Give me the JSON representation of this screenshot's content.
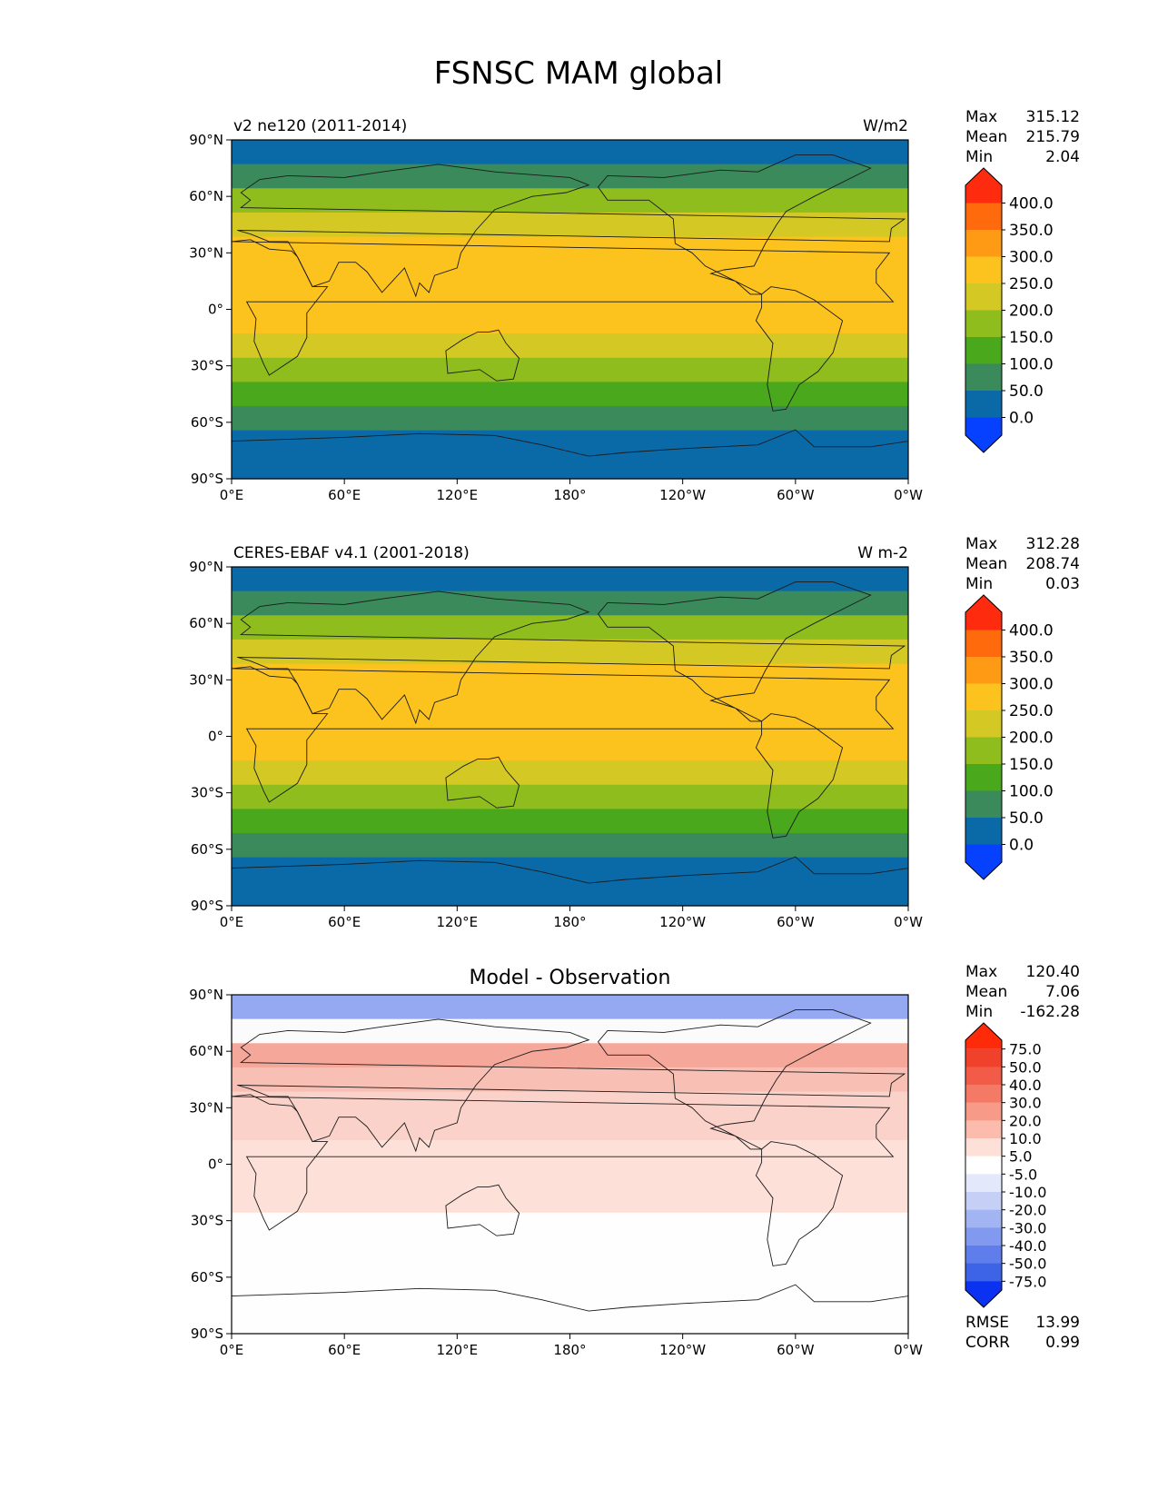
{
  "title": "FSNSC MAM global",
  "colors": {
    "ocean_high_lat": "#0868ac",
    "land_line": "#1a1a1a"
  },
  "chart_data": [
    {
      "type": "heatmap",
      "panel": "test",
      "title_left": "v2 ne120 (2011-2014)",
      "title_right": "W/m2",
      "stats": {
        "max_label": "Max",
        "max": "315.12",
        "mean_label": "Mean",
        "mean": "215.79",
        "min_label": "Min",
        "min": "2.04"
      },
      "colorbar_levels": [
        "400.0",
        "350.0",
        "300.0",
        "250.0",
        "200.0",
        "150.0",
        "100.0",
        "50.0",
        "0.0"
      ],
      "colorbar_colors": [
        "#ff2b0f",
        "#ff6a0c",
        "#ff9a14",
        "#fcc21d",
        "#d4c924",
        "#8fbd1e",
        "#4aa81c",
        "#3b8a5b",
        "#0a6aa8",
        "#0541ff"
      ],
      "xticks": [
        "0°E",
        "60°E",
        "120°E",
        "180°",
        "120°W",
        "60°W",
        "0°W"
      ],
      "yticks": [
        "90°N",
        "60°N",
        "30°N",
        "0°",
        "30°S",
        "60°S",
        "90°S"
      ],
      "lat_band_colors": [
        "#0a6aa8",
        "#3b8a5b",
        "#8fbd1e",
        "#d4c924",
        "#fcc21d",
        "#fcc21d",
        "#fcc21d",
        "#fcc21d",
        "#d4c924",
        "#8fbd1e",
        "#4aa81c",
        "#3b8a5b",
        "#0a6aa8",
        "#0a6aa8"
      ]
    },
    {
      "type": "heatmap",
      "panel": "reference",
      "title_left": "CERES-EBAF v4.1 (2001-2018)",
      "title_right": "W m-2",
      "stats": {
        "max_label": "Max",
        "max": "312.28",
        "mean_label": "Mean",
        "mean": "208.74",
        "min_label": "Min",
        "min": "0.03"
      },
      "colorbar_levels": [
        "400.0",
        "350.0",
        "300.0",
        "250.0",
        "200.0",
        "150.0",
        "100.0",
        "50.0",
        "0.0"
      ],
      "colorbar_colors": [
        "#ff2b0f",
        "#ff6a0c",
        "#ff9a14",
        "#fcc21d",
        "#d4c924",
        "#8fbd1e",
        "#4aa81c",
        "#3b8a5b",
        "#0a6aa8",
        "#0541ff"
      ],
      "xticks": [
        "0°E",
        "60°E",
        "120°E",
        "180°",
        "120°W",
        "60°W",
        "0°W"
      ],
      "yticks": [
        "90°N",
        "60°N",
        "30°N",
        "0°",
        "30°S",
        "60°S",
        "90°S"
      ],
      "lat_band_colors": [
        "#0a6aa8",
        "#3b8a5b",
        "#8fbd1e",
        "#d4c924",
        "#fcc21d",
        "#fcc21d",
        "#fcc21d",
        "#fcc21d",
        "#d4c924",
        "#8fbd1e",
        "#4aa81c",
        "#3b8a5b",
        "#0a6aa8",
        "#0a6aa8"
      ]
    },
    {
      "type": "heatmap",
      "panel": "difference",
      "title_center": "Model - Observation",
      "stats": {
        "max_label": "Max",
        "max": "120.40",
        "mean_label": "Mean",
        "mean": "7.06",
        "min_label": "Min",
        "min": "-162.28"
      },
      "colorbar_levels": [
        "75.0",
        "50.0",
        "40.0",
        "30.0",
        "20.0",
        "10.0",
        "5.0",
        "-5.0",
        "-10.0",
        "-20.0",
        "-30.0",
        "-40.0",
        "-50.0",
        "-75.0"
      ],
      "colorbar_colors": [
        "#ff2a0a",
        "#f0412a",
        "#f25b48",
        "#f57a66",
        "#f89a88",
        "#fbbcae",
        "#fde0d8",
        "#ffffff",
        "#e3e8fb",
        "#c6d0f7",
        "#a3b4f3",
        "#8199ef",
        "#5f7eeb",
        "#3d63e7",
        "#0a32f0"
      ],
      "xticks": [
        "0°E",
        "60°E",
        "120°E",
        "180°",
        "120°W",
        "60°W",
        "0°W"
      ],
      "yticks": [
        "90°N",
        "60°N",
        "30°N",
        "0°",
        "30°S",
        "60°S",
        "90°S"
      ],
      "lat_band_colors": [
        "#94a9f1",
        "#fbfbfb",
        "#f5a79a",
        "#f8c0b5",
        "#fad2ca",
        "#fad2ca",
        "#fde0d8",
        "#fde0d8",
        "#fde0d8",
        "#fefefe",
        "#fefefe",
        "#fefefe",
        "#fefefe",
        "#fefefe"
      ],
      "rmse_label": "RMSE",
      "rmse": "13.99",
      "corr_label": "CORR",
      "corr": "0.99"
    }
  ]
}
